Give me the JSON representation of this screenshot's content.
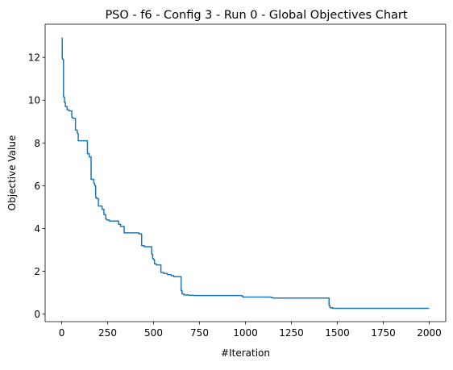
{
  "chart_data": {
    "type": "line",
    "title": "PSO - f6 - Config 3 - Run 0 - Global Objectives Chart",
    "xlabel": "#Iteration",
    "ylabel": "Objective Value",
    "xlim": [
      -90,
      2090
    ],
    "ylim": [
      -0.35,
      13.55
    ],
    "xticks": [
      0,
      250,
      500,
      750,
      1000,
      1250,
      1500,
      1750,
      2000
    ],
    "yticks": [
      0,
      2,
      4,
      6,
      8,
      10,
      12
    ],
    "grid": false,
    "series": [
      {
        "color": "#1f77b4",
        "step": true,
        "x": [
          0,
          3,
          5,
          10,
          15,
          20,
          30,
          40,
          55,
          60,
          75,
          85,
          90,
          140,
          150,
          160,
          175,
          180,
          185,
          190,
          200,
          220,
          230,
          240,
          245,
          260,
          310,
          320,
          340,
          360,
          420,
          435,
          450,
          490,
          495,
          500,
          505,
          515,
          540,
          555,
          575,
          595,
          610,
          650,
          655,
          665,
          690,
          720,
          980,
          985,
          1140,
          1150,
          1455,
          1460,
          1475,
          2000
        ],
        "y": [
          12.9,
          11.95,
          11.9,
          10.15,
          9.9,
          9.7,
          9.55,
          9.5,
          9.2,
          9.15,
          8.6,
          8.45,
          8.1,
          7.5,
          7.35,
          6.3,
          6.1,
          6.0,
          5.45,
          5.4,
          5.05,
          4.9,
          4.65,
          4.45,
          4.4,
          4.35,
          4.2,
          4.1,
          3.8,
          3.8,
          3.75,
          3.2,
          3.15,
          2.8,
          2.6,
          2.55,
          2.35,
          2.3,
          1.95,
          1.9,
          1.85,
          1.8,
          1.75,
          1.1,
          0.95,
          0.9,
          0.88,
          0.87,
          0.85,
          0.8,
          0.77,
          0.75,
          0.4,
          0.3,
          0.27,
          0.27
        ]
      }
    ]
  }
}
